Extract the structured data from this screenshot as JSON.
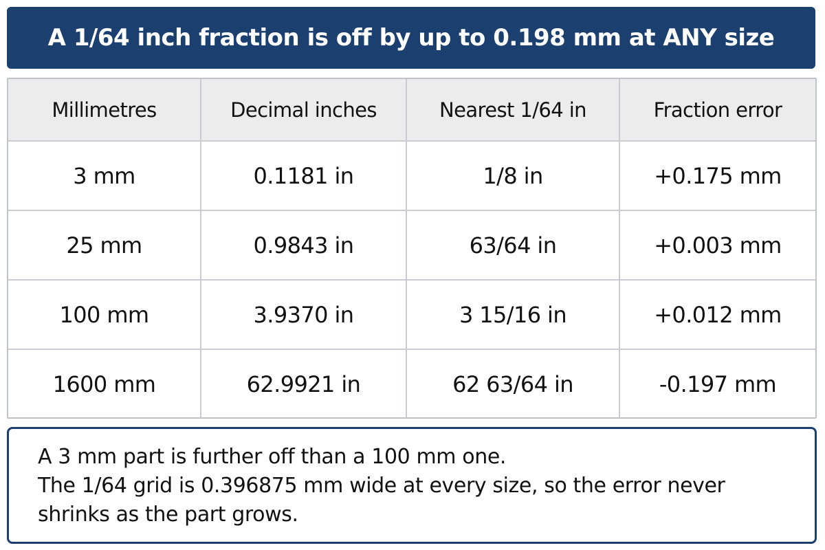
{
  "header": {
    "title": "A 1/64 inch fraction is off by up to 0.198 mm at ANY size"
  },
  "table": {
    "columns": [
      "Millimetres",
      "Decimal inches",
      "Nearest 1/64 in",
      "Fraction error"
    ],
    "rows": [
      {
        "mm": "3 mm",
        "decimal": "0.1181 in",
        "fraction": "1/8 in",
        "error": "+0.175 mm"
      },
      {
        "mm": "25 mm",
        "decimal": "0.9843 in",
        "fraction": "63/64 in",
        "error": "+0.003 mm"
      },
      {
        "mm": "100 mm",
        "decimal": "3.9370 in",
        "fraction": "3 15/16 in",
        "error": "+0.012 mm"
      },
      {
        "mm": "1600 mm",
        "decimal": "62.9921 in",
        "fraction": "62 63/64 in",
        "error": "-0.197 mm"
      }
    ]
  },
  "note": {
    "line1": "A 3 mm part is further off than a 100 mm one.",
    "line2": "The 1/64 grid is 0.396875 mm wide at every size, so the error never shrinks as the part grows."
  },
  "colors": {
    "banner_bg": "#1b3f6f",
    "header_row_bg": "#ececed",
    "grid_lines": "#c9ccd2"
  }
}
